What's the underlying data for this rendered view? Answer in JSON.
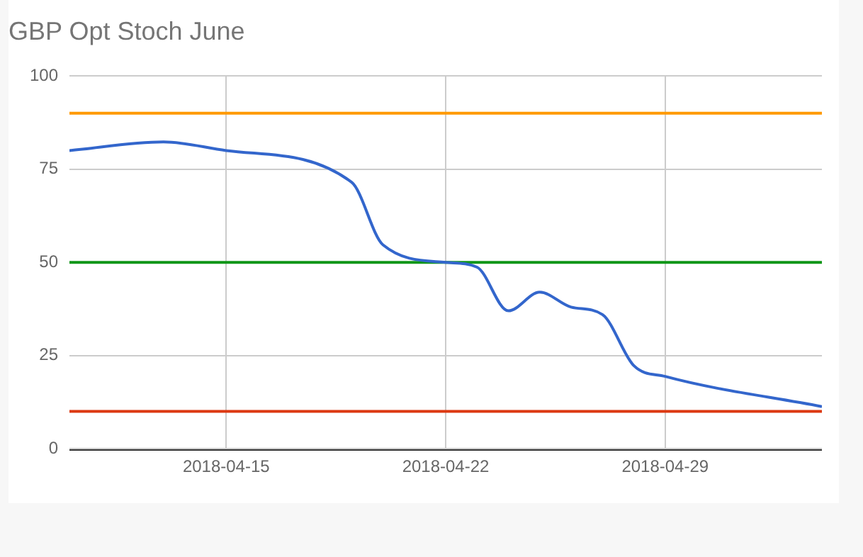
{
  "chart_data": {
    "type": "line",
    "title": "GBP Opt Stoch June",
    "x": [
      "2018-04-10",
      "2018-04-13",
      "2018-04-15",
      "2018-04-19",
      "2018-04-20",
      "2018-04-22",
      "2018-04-23",
      "2018-04-24",
      "2018-04-25",
      "2018-04-26",
      "2018-04-27",
      "2018-04-28",
      "2018-04-29",
      "2018-05-04"
    ],
    "series": [
      {
        "color": "#3366cc",
        "values": [
          80,
          82.3,
          80,
          71.5,
          54.7,
          50,
          48.7,
          37,
          42,
          38,
          36,
          22.3,
          19.4,
          11.3
        ]
      }
    ],
    "xlim": [
      "2018-04-10",
      "2018-05-04"
    ],
    "xticks": [
      "2018-04-15",
      "2018-04-22",
      "2018-04-29"
    ],
    "ylim": [
      0,
      100
    ],
    "yticks": [
      0,
      25,
      50,
      75,
      100
    ],
    "ref_lines": [
      {
        "axis": "y",
        "value": 90,
        "color": "#ff9900"
      },
      {
        "axis": "y",
        "value": 50,
        "color": "#109618"
      },
      {
        "axis": "y",
        "value": 10,
        "color": "#dc3912"
      }
    ],
    "grid": true,
    "legend": false,
    "marker": "none",
    "line_style": "solid"
  }
}
